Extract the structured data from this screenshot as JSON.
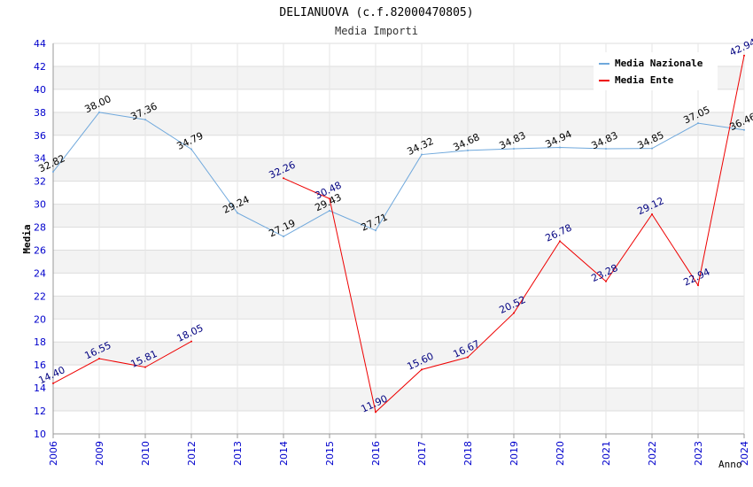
{
  "chart_data": {
    "type": "line",
    "title": "DELIANUOVA (c.f.82000470805)",
    "subtitle": "Media Importi",
    "xlabel": "Anno",
    "ylabel": "Media",
    "ylim": [
      10,
      44
    ],
    "y_ticks": [
      10,
      12,
      14,
      16,
      18,
      20,
      22,
      24,
      26,
      28,
      30,
      32,
      34,
      36,
      38,
      40,
      42,
      44
    ],
    "categories": [
      "2006",
      "2009",
      "2010",
      "2012",
      "2013",
      "2014",
      "2015",
      "2016",
      "2017",
      "2018",
      "2019",
      "2020",
      "2021",
      "2022",
      "2023",
      "2024"
    ],
    "legend_position": "top-right",
    "grid": true,
    "series": [
      {
        "name": "Media Nazionale",
        "color": "#6fa8dc",
        "label_color": "#000000",
        "values": [
          32.82,
          38.0,
          37.36,
          34.79,
          29.24,
          27.19,
          29.43,
          27.71,
          34.32,
          34.68,
          34.83,
          34.94,
          34.83,
          34.85,
          37.05,
          36.46
        ],
        "labels": [
          "32.82",
          "38.00",
          "37.36",
          "34.79",
          "29.24",
          "27.19",
          "29.43",
          "27.71",
          "34.32",
          "34.68",
          "34.83",
          "34.94",
          "34.83",
          "34.85",
          "37.05",
          "36.46"
        ]
      },
      {
        "name": "Media Ente",
        "color": "#ee0000",
        "label_color": "#000080",
        "values": [
          14.4,
          16.55,
          15.81,
          18.05,
          null,
          32.26,
          30.48,
          11.9,
          15.6,
          16.67,
          20.52,
          26.78,
          23.28,
          29.12,
          22.94,
          42.94
        ],
        "labels": [
          "14.40",
          "16.55",
          "15.81",
          "18.05",
          null,
          "32.26",
          "30.48",
          "11.90",
          "15.60",
          "16.67",
          "20.52",
          "26.78",
          "23.28",
          "29.12",
          "22.94",
          "42.94"
        ]
      }
    ]
  }
}
